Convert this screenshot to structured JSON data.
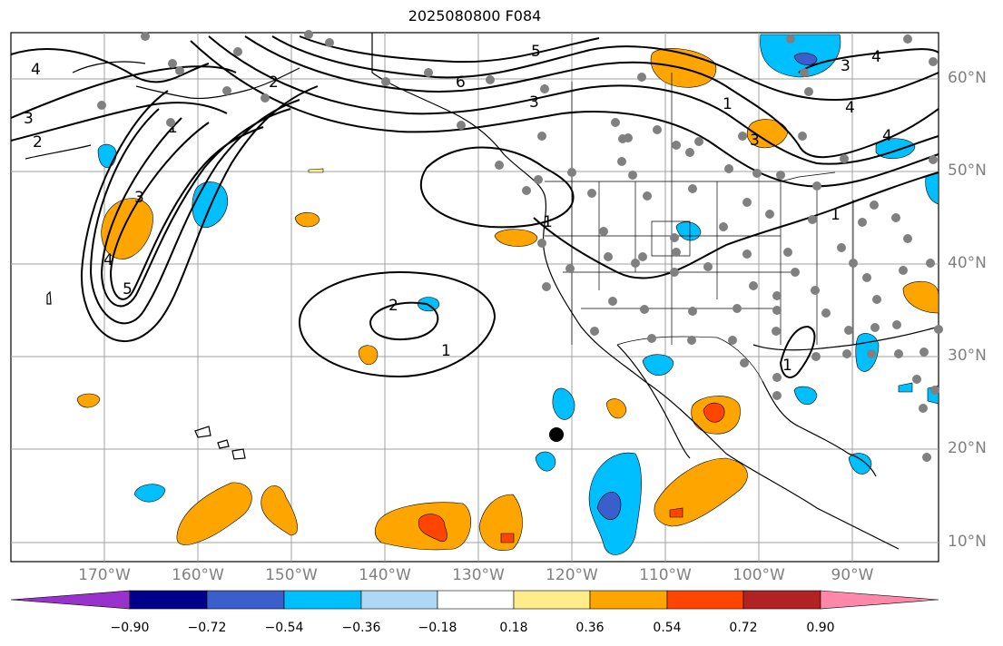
{
  "title": "2025080800 F084",
  "lon_labels": [
    "170°W",
    "160°W",
    "150°W",
    "140°W",
    "130°W",
    "120°W",
    "110°W",
    "100°W",
    "90°W"
  ],
  "lat_labels": [
    "60°N",
    "50°N",
    "40°N",
    "30°N",
    "20°N",
    "10°N"
  ],
  "contour_labels": [
    "5",
    "6",
    "3",
    "4",
    "3",
    "4",
    "1",
    "2",
    "3",
    "2",
    "3",
    "4",
    "5",
    "2",
    "1",
    "1",
    "4",
    "3",
    "1",
    "1",
    "1",
    "4"
  ],
  "colorbar": {
    "ticks": [
      "−0.90",
      "−0.72",
      "−0.54",
      "−0.36",
      "−0.18",
      "0.18",
      "0.36",
      "0.54",
      "0.72",
      "0.90"
    ],
    "colors": [
      "#9932cc",
      "#00008b",
      "#3a5fcd",
      "#00bfff",
      "#add8f6",
      "#ffffff",
      "#ffec8b",
      "#ffa500",
      "#ff4500",
      "#b22222",
      "#ff88aa"
    ]
  },
  "colors": {
    "gridline": "#a0a0a0",
    "station_dot": "#808080",
    "contour": "#000000"
  }
}
